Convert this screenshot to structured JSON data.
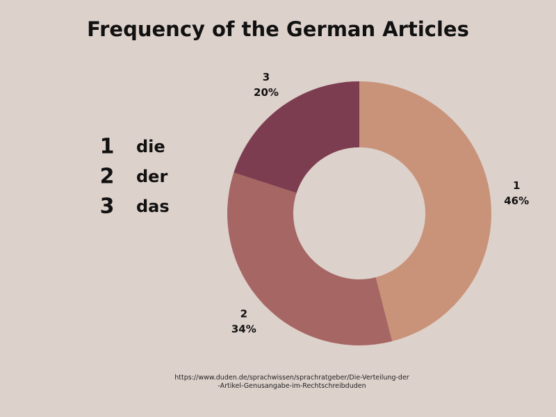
{
  "chart_data": {
    "type": "donut",
    "title": "Frequency of the German Articles",
    "categories": [
      "1",
      "2",
      "3"
    ],
    "values": [
      46,
      34,
      20
    ],
    "value_labels": [
      "46%",
      "34%",
      "20%"
    ],
    "colors": [
      "#c9937a",
      "#a66663",
      "#7d3d50"
    ],
    "legend_labels": [
      "die",
      "der",
      "das"
    ],
    "source": "https://www.duden.de/sprachwissen/sprachratgeber/Die-Verteilung-der-Artikel-Genusangabe-im-Rechtschreibduden"
  }
}
